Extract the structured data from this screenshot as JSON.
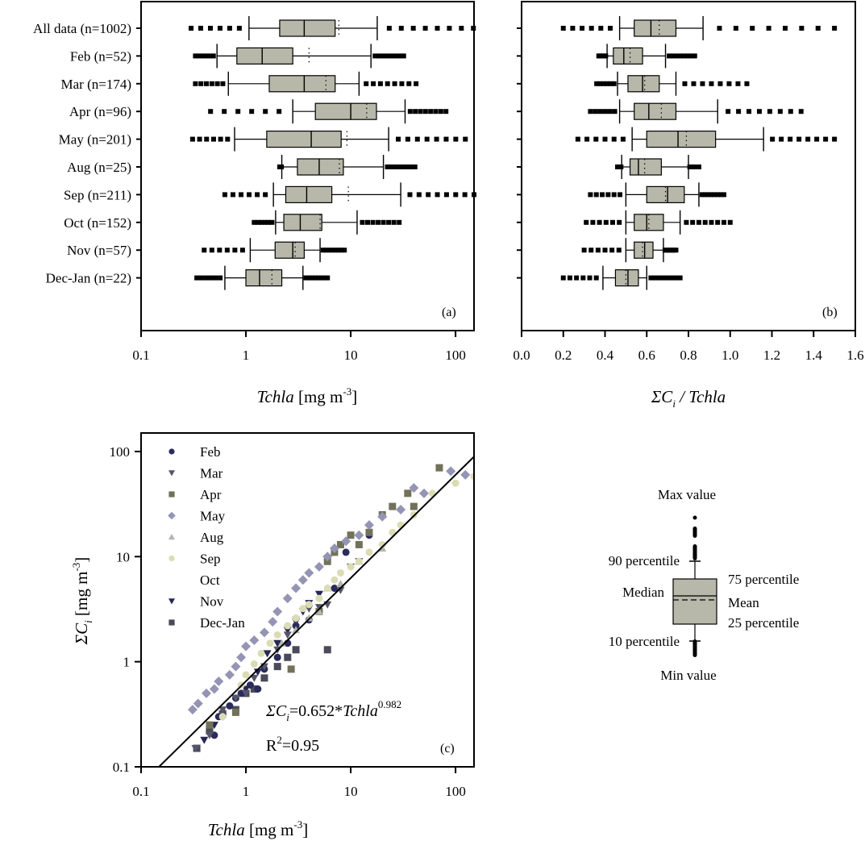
{
  "figure": {
    "panels": [
      "(a)",
      "(b)",
      "(c)"
    ]
  },
  "chart_data": [
    {
      "type": "boxplot",
      "panel_tag": "(a)",
      "xlabel": "Tchla [mg m-3]",
      "xlabel_parts": {
        "italic": "Tchla",
        "unit": " [mg m",
        "sup": "-3",
        "close": "]"
      },
      "xscale": "log",
      "xlim": [
        0.1,
        150
      ],
      "xticks": [
        0.1,
        1,
        10,
        100
      ],
      "xtick_labels": [
        "0.1",
        "1",
        "10",
        "100"
      ],
      "categories": [
        "All data (n=1002)",
        "Feb (n=52)",
        "Mar (n=174)",
        "Apr (n=96)",
        "May (n=201)",
        "Aug (n=25)",
        "Sep (n=211)",
        "Oct (n=152)",
        "Nov (n=57)",
        "Dec-Jan (n=22)"
      ],
      "boxes": [
        {
          "min": 0.3,
          "p10": 1.07,
          "q1": 2.1,
          "median": 3.6,
          "mean": 7.7,
          "q3": 7.1,
          "p90": 17.9,
          "max": 148
        },
        {
          "min": 0.33,
          "p10": 0.53,
          "q1": 0.82,
          "median": 1.43,
          "mean": 4.0,
          "q3": 2.8,
          "p90": 15.6,
          "max": 32
        },
        {
          "min": 0.33,
          "p10": 0.68,
          "q1": 1.67,
          "median": 3.6,
          "mean": 5.8,
          "q3": 7.1,
          "p90": 12,
          "max": 42
        },
        {
          "min": 0.46,
          "p10": 2.8,
          "q1": 4.6,
          "median": 10,
          "mean": 14.2,
          "q3": 17.6,
          "p90": 33,
          "max": 81
        },
        {
          "min": 0.31,
          "p10": 0.78,
          "q1": 1.58,
          "median": 4.2,
          "mean": 9.2,
          "q3": 8.1,
          "p90": 23,
          "max": 124
        },
        {
          "min": 2.1,
          "p10": 2.2,
          "q1": 3.1,
          "median": 5.0,
          "mean": 7.8,
          "q3": 8.5,
          "p90": 20.5,
          "max": 41
        },
        {
          "min": 0.63,
          "p10": 1.83,
          "q1": 2.4,
          "median": 3.8,
          "mean": 9.5,
          "q3": 6.6,
          "p90": 30,
          "max": 150
        },
        {
          "min": 1.2,
          "p10": 1.92,
          "q1": 2.3,
          "median": 3.3,
          "mean": 5.1,
          "q3": 5.3,
          "p90": 11.5,
          "max": 29
        },
        {
          "min": 0.4,
          "p10": 1.1,
          "q1": 1.9,
          "median": 2.8,
          "mean": 2.95,
          "q3": 3.6,
          "p90": 5.1,
          "max": 8.7
        },
        {
          "min": 0.34,
          "p10": 0.63,
          "q1": 1.0,
          "median": 1.35,
          "mean": 1.77,
          "q3": 2.2,
          "p90": 3.5,
          "max": 6.0
        }
      ]
    },
    {
      "type": "boxplot",
      "panel_tag": "(b)",
      "xlabel": "ΣCi / Tchla",
      "xlabel_parts": {
        "sigma": "ΣC",
        "sub": "i",
        "rest": " / Tchla"
      },
      "xscale": "linear",
      "xlim": [
        0.0,
        1.6
      ],
      "xticks": [
        0.0,
        0.2,
        0.4,
        0.6,
        0.8,
        1.0,
        1.2,
        1.4,
        1.6
      ],
      "xtick_labels": [
        "0.0",
        "0.2",
        "0.4",
        "0.6",
        "0.8",
        "1.0",
        "1.2",
        "1.4",
        "1.6"
      ],
      "categories": [
        "All data (n=1002)",
        "Feb (n=52)",
        "Mar (n=174)",
        "Apr (n=96)",
        "May (n=201)",
        "Aug (n=25)",
        "Sep (n=211)",
        "Oct (n=152)",
        "Nov (n=57)",
        "Dec-Jan (n=22)"
      ],
      "boxes": [
        {
          "min": 0.2,
          "p10": 0.47,
          "q1": 0.54,
          "median": 0.62,
          "mean": 0.66,
          "q3": 0.74,
          "p90": 0.87,
          "max": 1.5
        },
        {
          "min": 0.37,
          "p10": 0.41,
          "q1": 0.44,
          "median": 0.49,
          "mean": 0.52,
          "q3": 0.58,
          "p90": 0.69,
          "max": 0.83
        },
        {
          "min": 0.36,
          "p10": 0.46,
          "q1": 0.51,
          "median": 0.58,
          "mean": 0.59,
          "q3": 0.66,
          "p90": 0.74,
          "max": 1.08
        },
        {
          "min": 0.33,
          "p10": 0.47,
          "q1": 0.54,
          "median": 0.61,
          "mean": 0.67,
          "q3": 0.74,
          "p90": 0.94,
          "max": 1.34
        },
        {
          "min": 0.27,
          "p10": 0.53,
          "q1": 0.6,
          "median": 0.75,
          "mean": 0.79,
          "q3": 0.93,
          "p90": 1.16,
          "max": 1.5
        },
        {
          "min": 0.46,
          "p10": 0.48,
          "q1": 0.52,
          "median": 0.56,
          "mean": 0.59,
          "q3": 0.67,
          "p90": 0.8,
          "max": 0.85
        },
        {
          "min": 0.33,
          "p10": 0.5,
          "q1": 0.6,
          "median": 0.7,
          "mean": 0.69,
          "q3": 0.78,
          "p90": 0.85,
          "max": 0.97
        },
        {
          "min": 0.31,
          "p10": 0.5,
          "q1": 0.54,
          "median": 0.6,
          "mean": 0.61,
          "q3": 0.68,
          "p90": 0.76,
          "max": 1.0
        },
        {
          "min": 0.3,
          "p10": 0.5,
          "q1": 0.54,
          "median": 0.59,
          "mean": 0.58,
          "q3": 0.63,
          "p90": 0.68,
          "max": 0.74
        },
        {
          "min": 0.2,
          "p10": 0.39,
          "q1": 0.45,
          "median": 0.51,
          "mean": 0.5,
          "q3": 0.56,
          "p90": 0.6,
          "max": 0.76
        }
      ]
    },
    {
      "type": "scatter",
      "panel_tag": "(c)",
      "xlabel": "Tchla [mg m-3]",
      "ylabel": "ΣCi [mg m-3]",
      "xscale": "log",
      "yscale": "log",
      "xlim": [
        0.1,
        150
      ],
      "ylim": [
        0.1,
        150
      ],
      "xticks": [
        0.1,
        1,
        10,
        100
      ],
      "xtick_labels": [
        "0.1",
        "1",
        "10",
        "100"
      ],
      "yticks": [
        0.1,
        1,
        10,
        100
      ],
      "ytick_labels": [
        "0.1",
        "1",
        "10",
        "100"
      ],
      "legend_position": "top-left",
      "fit": {
        "a": 0.652,
        "b": 0.982,
        "equation_prefix": "ΣC",
        "equation_sub": "i",
        "equation_mid": "=0.652*",
        "equation_var": "Tchla",
        "equation_exp": "0.982",
        "r2_label": "R",
        "r2_sup": "2",
        "r2_value": "=0.95"
      },
      "series": [
        {
          "name": "Feb",
          "marker": "circle",
          "color": "#2b2b5e",
          "points": [
            [
              0.5,
              0.2
            ],
            [
              0.55,
              0.3
            ],
            [
              0.7,
              0.38
            ],
            [
              0.8,
              0.45
            ],
            [
              0.9,
              0.5
            ],
            [
              1.1,
              0.6
            ],
            [
              1.3,
              0.55
            ],
            [
              1.5,
              0.85
            ],
            [
              2,
              1.1
            ],
            [
              2.5,
              1.5
            ],
            [
              3,
              2.2
            ],
            [
              4,
              2.5
            ],
            [
              5,
              3
            ],
            [
              7,
              5
            ],
            [
              9,
              11
            ],
            [
              15,
              16
            ]
          ]
        },
        {
          "name": "Mar",
          "marker": "triangle-down",
          "color": "#55556a",
          "points": [
            [
              0.33,
              0.15
            ],
            [
              0.45,
              0.2
            ],
            [
              0.6,
              0.35
            ],
            [
              0.8,
              0.45
            ],
            [
              1,
              0.5
            ],
            [
              1.2,
              0.7
            ],
            [
              1.5,
              0.9
            ],
            [
              2,
              1.3
            ],
            [
              2.5,
              1.8
            ],
            [
              3,
              2.5
            ],
            [
              4,
              3.2
            ],
            [
              5,
              3.3
            ],
            [
              6,
              3.5
            ],
            [
              8,
              4.8
            ],
            [
              10,
              8
            ],
            [
              12,
              9
            ]
          ]
        },
        {
          "name": "Apr",
          "marker": "square",
          "color": "#72725a",
          "points": [
            [
              0.45,
              0.25
            ],
            [
              0.8,
              0.33
            ],
            [
              2.7,
              0.85
            ],
            [
              5,
              3
            ],
            [
              6,
              9
            ],
            [
              7,
              11
            ],
            [
              8,
              13
            ],
            [
              10,
              16
            ],
            [
              12,
              13
            ],
            [
              15,
              17
            ],
            [
              20,
              25
            ],
            [
              25,
              30
            ],
            [
              35,
              40
            ],
            [
              40,
              30
            ],
            [
              70,
              70
            ]
          ]
        },
        {
          "name": "May",
          "marker": "diamond",
          "color": "#9494b4",
          "points": [
            [
              0.31,
              0.35
            ],
            [
              0.35,
              0.4
            ],
            [
              0.42,
              0.5
            ],
            [
              0.5,
              0.55
            ],
            [
              0.55,
              0.65
            ],
            [
              0.7,
              0.75
            ],
            [
              0.8,
              0.9
            ],
            [
              0.9,
              1.1
            ],
            [
              1,
              1.4
            ],
            [
              1.2,
              1.6
            ],
            [
              1.5,
              1.9
            ],
            [
              1.8,
              2.4
            ],
            [
              2,
              3
            ],
            [
              2.5,
              4
            ],
            [
              3,
              5
            ],
            [
              3.5,
              6
            ],
            [
              4,
              7
            ],
            [
              5,
              8
            ],
            [
              6,
              10
            ],
            [
              7,
              12
            ],
            [
              9,
              14
            ],
            [
              12,
              16
            ],
            [
              15,
              20
            ],
            [
              20,
              24
            ],
            [
              30,
              28
            ],
            [
              40,
              45
            ],
            [
              50,
              40
            ],
            [
              90,
              65
            ],
            [
              124,
              60
            ]
          ]
        },
        {
          "name": "Aug",
          "marker": "triangle-up",
          "color": "#b4b4ac",
          "points": [
            [
              2.2,
              1.5
            ],
            [
              3,
              2
            ],
            [
              4,
              2.6
            ],
            [
              5,
              3
            ],
            [
              6,
              5
            ],
            [
              8,
              5.5
            ],
            [
              12,
              9
            ],
            [
              20,
              12
            ]
          ]
        },
        {
          "name": "Sep",
          "marker": "circle",
          "color": "#dcdcb4",
          "points": [
            [
              0.6,
              0.3
            ],
            [
              0.9,
              0.6
            ],
            [
              1,
              0.75
            ],
            [
              1.2,
              0.95
            ],
            [
              1.4,
              1.2
            ],
            [
              1.7,
              1.5
            ],
            [
              2,
              1.8
            ],
            [
              2.5,
              2.2
            ],
            [
              3,
              2.6
            ],
            [
              3.5,
              3.2
            ],
            [
              4,
              3.5
            ],
            [
              5,
              4
            ],
            [
              6,
              5
            ],
            [
              7,
              6
            ],
            [
              8,
              7
            ],
            [
              10,
              8
            ],
            [
              12,
              9
            ],
            [
              15,
              11
            ],
            [
              20,
              13
            ],
            [
              25,
              17
            ],
            [
              30,
              20
            ],
            [
              40,
              25
            ],
            [
              60,
              40
            ],
            [
              100,
              50
            ],
            [
              150,
              58
            ]
          ]
        },
        {
          "name": "Oct",
          "marker": "none",
          "color": "#ffffff",
          "points": []
        },
        {
          "name": "Nov",
          "marker": "triangle-down",
          "color": "#262656",
          "points": [
            [
              0.4,
              0.18
            ],
            [
              0.5,
              0.25
            ],
            [
              0.6,
              0.3
            ],
            [
              0.8,
              0.45
            ],
            [
              1,
              0.55
            ],
            [
              1.3,
              0.8
            ],
            [
              1.6,
              1.2
            ],
            [
              2,
              1.5
            ],
            [
              2.5,
              2
            ],
            [
              3,
              2.4
            ],
            [
              3.5,
              3
            ],
            [
              4,
              3.6
            ],
            [
              5,
              4.4
            ]
          ]
        },
        {
          "name": "Dec-Jan",
          "marker": "square",
          "color": "#4a4a5a",
          "points": [
            [
              0.34,
              0.15
            ],
            [
              0.45,
              0.22
            ],
            [
              0.6,
              0.32
            ],
            [
              0.8,
              0.35
            ],
            [
              1,
              0.5
            ],
            [
              1.2,
              0.55
            ],
            [
              1.5,
              0.7
            ],
            [
              2,
              0.9
            ],
            [
              2.5,
              1.1
            ],
            [
              3,
              1.3
            ],
            [
              6,
              1.3
            ]
          ]
        }
      ]
    }
  ],
  "key": {
    "max_label": "Max value",
    "p90_label": "90 percentile",
    "q3_label": "75 percentile",
    "median_label": "Median",
    "mean_label": "Mean",
    "q1_label": "25 percentile",
    "p10_label": "10 percentile",
    "min_label": "Min value"
  }
}
